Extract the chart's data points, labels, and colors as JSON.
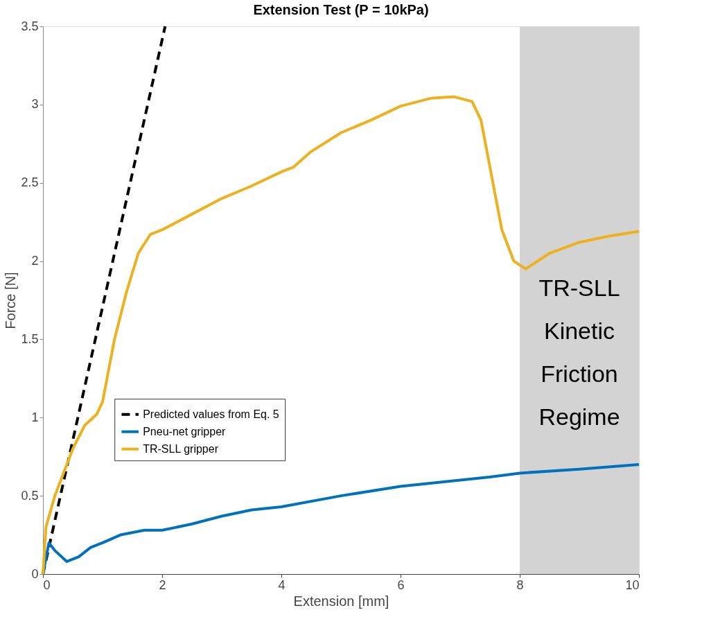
{
  "chart_data": {
    "type": "line",
    "title": "Extension Test (P = 10kPa)",
    "xlabel": "Extension [mm]",
    "ylabel": "Force [N]",
    "xlim": [
      0,
      10
    ],
    "ylim": [
      0,
      3.5
    ],
    "xticks": [
      0,
      2,
      4,
      6,
      8,
      10
    ],
    "yticks": [
      0,
      0.5,
      1,
      1.5,
      2,
      2.5,
      3,
      3.5
    ],
    "grid": false,
    "legend": "bottom left",
    "bands": [
      {
        "axis": "x",
        "from": 8,
        "to": 10,
        "label": "TR-SLL Kinetic Friction Regime",
        "color": "#d3d3d3"
      }
    ],
    "series": [
      {
        "name": "Predicted values from Eq. 5",
        "color": "#000000",
        "line_style": "dashed",
        "x": [
          0,
          2.05
        ],
        "values": [
          0,
          3.5
        ]
      },
      {
        "name": "Pneu-net gripper",
        "color": "#0072bd",
        "line_style": "solid",
        "x": [
          0,
          0.1,
          0.2,
          0.4,
          0.6,
          0.8,
          1.0,
          1.3,
          1.7,
          2.0,
          2.5,
          3.0,
          3.5,
          4.0,
          5.0,
          6.0,
          7.0,
          7.5,
          8.0,
          9.0,
          10
        ],
        "values": [
          0,
          0.2,
          0.15,
          0.08,
          0.11,
          0.17,
          0.2,
          0.25,
          0.28,
          0.28,
          0.32,
          0.37,
          0.41,
          0.43,
          0.5,
          0.56,
          0.6,
          0.62,
          0.645,
          0.67,
          0.7
        ]
      },
      {
        "name": "TR-SLL gripper",
        "color": "#edb120",
        "line_style": "solid",
        "x": [
          0,
          0.05,
          0.2,
          0.5,
          0.7,
          0.9,
          1.0,
          1.2,
          1.4,
          1.6,
          1.8,
          2.0,
          2.2,
          2.5,
          3.0,
          3.5,
          4.0,
          4.2,
          4.5,
          5.0,
          5.5,
          6.0,
          6.5,
          6.9,
          7.2,
          7.35,
          7.5,
          7.7,
          7.9,
          8.1,
          8.5,
          9.0,
          9.5,
          10
        ],
        "values": [
          0,
          0.3,
          0.5,
          0.8,
          0.95,
          1.02,
          1.1,
          1.5,
          1.8,
          2.05,
          2.17,
          2.2,
          2.24,
          2.3,
          2.4,
          2.48,
          2.57,
          2.6,
          2.7,
          2.82,
          2.9,
          2.99,
          3.04,
          3.05,
          3.02,
          2.9,
          2.6,
          2.2,
          2.0,
          1.95,
          2.05,
          2.12,
          2.16,
          2.19
        ]
      }
    ]
  }
}
